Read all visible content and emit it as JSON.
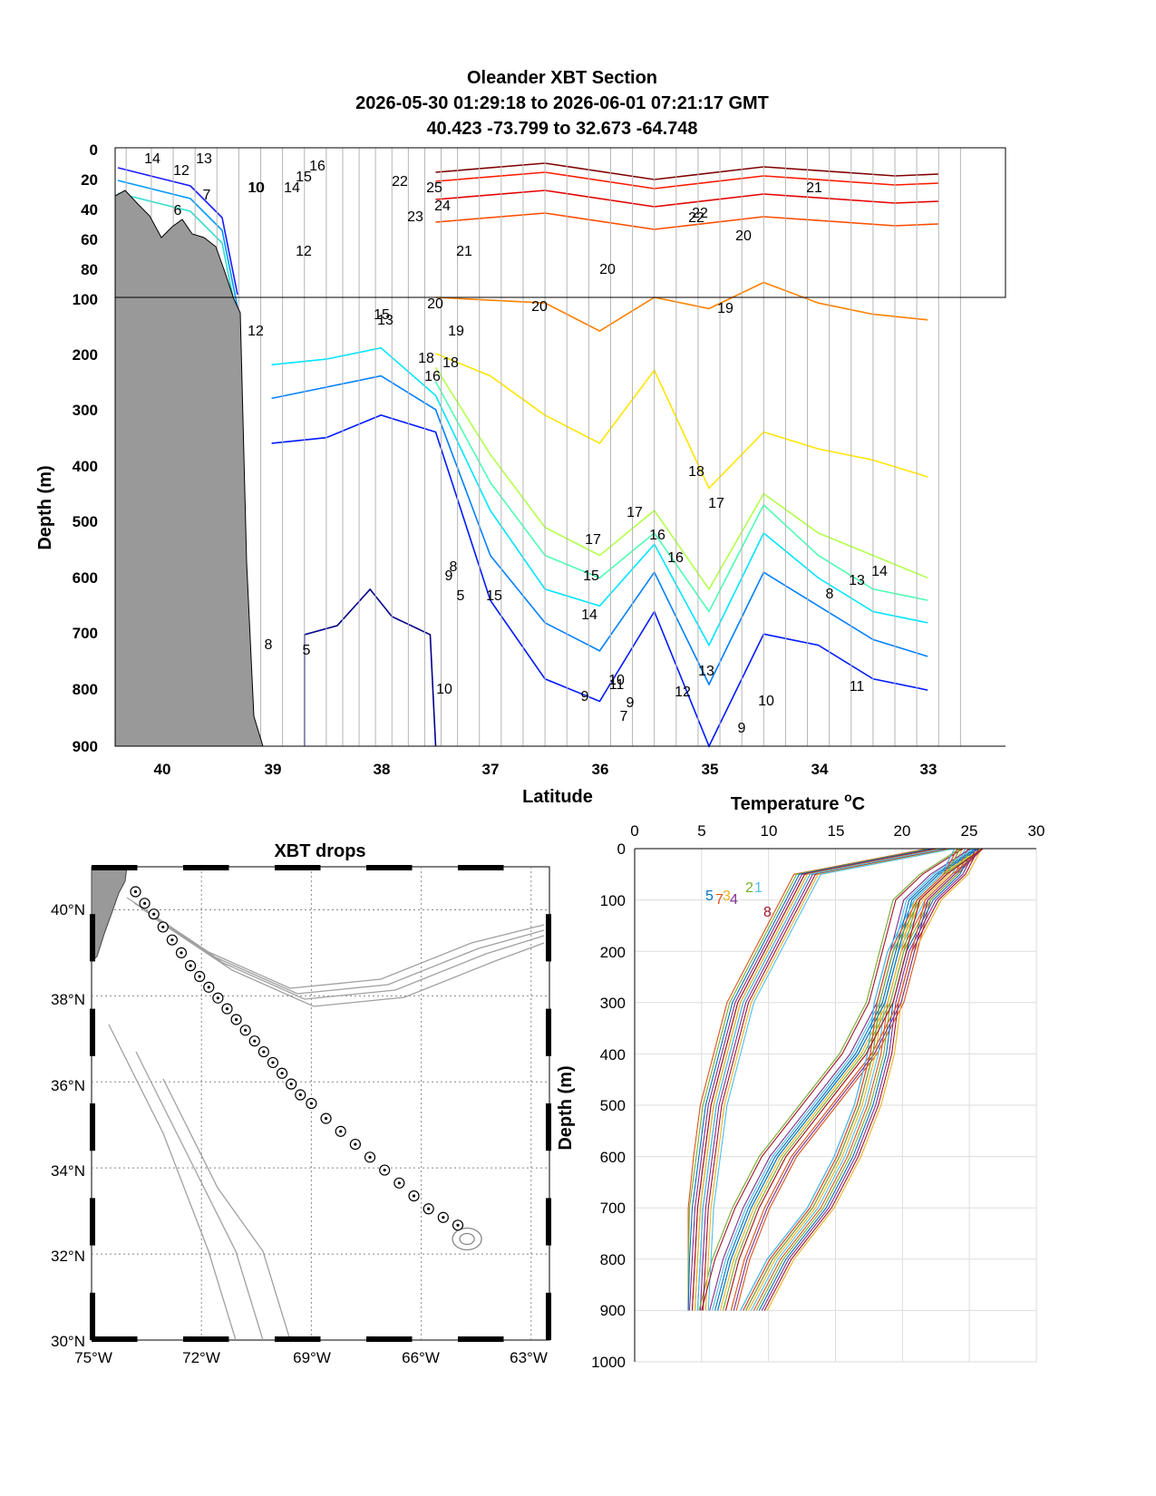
{
  "section": {
    "title_lines": [
      "Oleander XBT Section",
      "2026-05-30 01:29:18 to 2026-06-01 07:21:17 GMT",
      "40.423 -73.799 to 32.673 -64.748"
    ],
    "xlabel": "Latitude",
    "ylabel": "Depth (m)",
    "x_ticks": [
      "40",
      "39",
      "38",
      "37",
      "36",
      "35",
      "34",
      "33"
    ],
    "y_ticks_upper": [
      "0",
      "20",
      "40",
      "60",
      "80",
      "100"
    ],
    "y_ticks_lower": [
      "200",
      "300",
      "400",
      "500",
      "600",
      "700",
      "800",
      "900"
    ],
    "contour_labels": [
      "14",
      "13",
      "12",
      "10",
      "6",
      "7",
      "15",
      "16",
      "10",
      "14",
      "12",
      "22",
      "25",
      "24",
      "23",
      "21",
      "20",
      "22",
      "21",
      "22",
      "20",
      "20",
      "20",
      "19",
      "19",
      "12",
      "13",
      "15",
      "18",
      "17",
      "16",
      "18",
      "16",
      "17",
      "15",
      "14",
      "13",
      "12",
      "11",
      "10",
      "9",
      "8",
      "5",
      "5",
      "9",
      "10",
      "9",
      "7",
      "8",
      "13",
      "14",
      "15",
      "11",
      "10",
      "9",
      "8",
      "16",
      "17",
      "18"
    ]
  },
  "map": {
    "title": "XBT drops",
    "lat_ticks": [
      "40°N",
      "38°N",
      "36°N",
      "34°N",
      "32°N",
      "30°N"
    ],
    "lon_ticks": [
      "75°W",
      "72°W",
      "69°W",
      "66°W",
      "63°W"
    ]
  },
  "profiles": {
    "xlabel_main": "Temperature ",
    "xlabel_sup": "o",
    "xlabel_unit": "C",
    "ylabel": "Depth (m)",
    "x_ticks": [
      "0",
      "5",
      "10",
      "15",
      "20",
      "25",
      "30"
    ],
    "y_ticks": [
      "0",
      "100",
      "200",
      "300",
      "400",
      "500",
      "600",
      "700",
      "800",
      "900",
      "1000"
    ],
    "drop_labels": [
      "5",
      "7",
      "3",
      "4",
      "2",
      "1",
      "8"
    ]
  },
  "chart_data": [
    {
      "type": "line",
      "title": "Oleander XBT Section",
      "subtitle": "2026-05-30 01:29:18 to 2026-06-01 07:21:17 GMT; 40.423 -73.799 to 32.673 -64.748",
      "xlabel": "Latitude",
      "ylabel": "Depth (m)",
      "xlim": [
        40.4,
        32.4
      ],
      "ylim_upper": [
        0,
        100
      ],
      "ylim_lower": [
        100,
        900
      ],
      "contour_levels": [
        5,
        6,
        7,
        8,
        9,
        10,
        11,
        12,
        13,
        14,
        15,
        16,
        17,
        18,
        19,
        20,
        21,
        22,
        23,
        24,
        25
      ],
      "station_latitudes": [
        40.33,
        40.1,
        39.9,
        39.7,
        39.5,
        39.3,
        39.1,
        38.9,
        38.7,
        38.5,
        38.35,
        38.2,
        38.05,
        37.9,
        37.75,
        37.6,
        37.45,
        37.3,
        37.1,
        36.9,
        36.7,
        36.5,
        36.3,
        36.1,
        35.9,
        35.7,
        35.5,
        35.3,
        35.1,
        34.9,
        34.7,
        34.5,
        34.3,
        34.1,
        33.9,
        33.7,
        33.5,
        33.3,
        33.1,
        32.9,
        32.7
      ],
      "bathymetry": {
        "lat": [
          40.4,
          40.25,
          40.1,
          39.95,
          39.8,
          39.65,
          39.5,
          39.4,
          39.3,
          39.15,
          39.0
        ],
        "depth": [
          30,
          28,
          45,
          55,
          80,
          65,
          100,
          300,
          800,
          900,
          900
        ]
      },
      "isotherm_depths": {
        "lat": [
          39.0,
          38.5,
          38.0,
          37.5,
          37.0,
          36.5,
          36.0,
          35.5,
          35.0,
          34.5,
          34.0,
          33.5,
          33.0
        ],
        "t20": [
          null,
          null,
          null,
          100,
          105,
          110,
          160,
          100,
          120,
          90,
          110,
          130,
          140
        ],
        "t18": [
          null,
          null,
          null,
          200,
          240,
          310,
          360,
          230,
          440,
          340,
          370,
          390,
          420
        ],
        "t16": [
          null,
          null,
          null,
          225,
          380,
          510,
          560,
          480,
          620,
          450,
          520,
          560,
          600
        ],
        "t14": [
          null,
          null,
          null,
          250,
          430,
          560,
          600,
          520,
          660,
          470,
          560,
          620,
          640
        ],
        "t12": [
          220,
          210,
          190,
          275,
          480,
          620,
          650,
          540,
          720,
          520,
          600,
          660,
          680
        ],
        "t10": [
          280,
          260,
          240,
          300,
          560,
          680,
          730,
          590,
          790,
          590,
          650,
          710,
          740
        ],
        "t8": [
          360,
          350,
          310,
          340,
          640,
          780,
          820,
          660,
          900,
          700,
          720,
          780,
          800
        ]
      }
    },
    {
      "type": "scatter",
      "title": "XBT drops",
      "xlabel": "",
      "ylabel": "",
      "xlim": [
        -75,
        -62.5
      ],
      "ylim": [
        30,
        41
      ],
      "lon": [
        -73.8,
        -73.55,
        -73.3,
        -73.05,
        -72.8,
        -72.55,
        -72.3,
        -72.05,
        -71.8,
        -71.55,
        -71.3,
        -71.05,
        -70.8,
        -70.55,
        -70.3,
        -70.05,
        -69.8,
        -69.55,
        -69.3,
        -69.0,
        -68.6,
        -68.2,
        -67.8,
        -67.4,
        -67.0,
        -66.6,
        -66.2,
        -65.8,
        -65.4,
        -65.0
      ],
      "lat": [
        40.42,
        40.15,
        39.9,
        39.6,
        39.3,
        39.0,
        38.7,
        38.45,
        38.2,
        37.95,
        37.7,
        37.45,
        37.2,
        36.95,
        36.7,
        36.45,
        36.2,
        35.95,
        35.7,
        35.5,
        35.15,
        34.85,
        34.55,
        34.25,
        33.95,
        33.65,
        33.35,
        33.05,
        32.85,
        32.67
      ]
    },
    {
      "type": "line",
      "title": "",
      "xlabel": "Temperature oC",
      "ylabel": "Depth (m)",
      "xlim": [
        0,
        30
      ],
      "ylim": [
        1000,
        0
      ],
      "series": [
        {
          "depth": [
            0,
            50,
            100,
            200,
            300,
            400,
            500,
            600,
            700,
            800,
            900
          ],
          "temp": [
            25,
            24,
            22,
            20,
            19,
            18.5,
            17.5,
            16,
            14,
            11,
            9
          ]
        },
        {
          "depth": [
            0,
            50,
            100,
            200,
            300,
            400,
            500,
            600,
            700,
            800,
            900
          ],
          "temp": [
            23,
            13,
            12,
            10,
            8,
            7,
            6,
            5.5,
            5,
            4.8,
            4.6
          ]
        },
        {
          "depth": [
            0,
            50,
            100,
            200,
            300,
            400,
            500,
            600,
            700,
            800,
            900
          ],
          "temp": [
            25,
            22,
            20,
            19,
            18,
            16,
            13,
            10,
            8,
            6.5,
            5.5
          ]
        }
      ]
    }
  ]
}
